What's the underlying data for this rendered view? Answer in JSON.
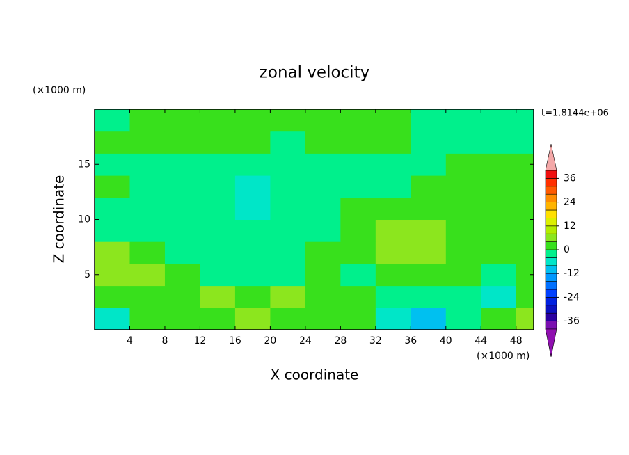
{
  "chart_data": {
    "type": "contour",
    "title": "zonal velocity",
    "xlabel": "X coordinate",
    "ylabel": "Z coordinate",
    "xunit": "(×1000 m)",
    "yunit": "(×1000 m)",
    "time_label": "t=1.8144e+06",
    "xlim": [
      0,
      50
    ],
    "xticks": [
      4,
      8,
      12,
      16,
      20,
      24,
      28,
      32,
      36,
      40,
      44,
      48
    ],
    "ylim": [
      0,
      20
    ],
    "yticks": [
      5,
      10,
      15
    ],
    "xbins": [
      0,
      4,
      8,
      12,
      16,
      20,
      24,
      28,
      32,
      36,
      40,
      44,
      48,
      50
    ],
    "ybins": [
      0,
      2,
      4,
      6,
      8,
      10,
      12,
      14,
      16,
      18,
      20
    ],
    "z": [
      [
        -6,
        1,
        1,
        1,
        6,
        1,
        1,
        1,
        -6,
        -10,
        -2,
        1,
        5
      ],
      [
        1,
        1,
        1,
        5,
        1,
        5,
        1,
        1,
        -2,
        -2,
        -2,
        -6,
        1
      ],
      [
        5,
        5,
        1,
        -2,
        -2,
        -2,
        1,
        -2,
        1,
        1,
        1,
        -2,
        1
      ],
      [
        5,
        1,
        -2,
        -2,
        -2,
        -2,
        1,
        1,
        6,
        6,
        1,
        1,
        1
      ],
      [
        -2,
        -2,
        -2,
        -2,
        -2,
        -2,
        -2,
        1,
        6,
        6,
        1,
        1,
        1
      ],
      [
        -2,
        -2,
        -2,
        -2,
        -6,
        -2,
        -2,
        1,
        1,
        1,
        1,
        1,
        1
      ],
      [
        1,
        -2,
        -2,
        -2,
        -6,
        -2,
        -2,
        -2,
        -2,
        1,
        1,
        1,
        1
      ],
      [
        -2,
        -2,
        -2,
        -2,
        -2,
        -2,
        -2,
        -2,
        -2,
        -2,
        1,
        1,
        1
      ],
      [
        1,
        1,
        1,
        1,
        1,
        -2,
        1,
        1,
        1,
        -2,
        -2,
        -2,
        -2
      ],
      [
        -2,
        1,
        1,
        1,
        1,
        1,
        1,
        1,
        1,
        -2,
        -2,
        -2,
        -2
      ]
    ],
    "levels": [
      -40,
      -36,
      -32,
      -28,
      -24,
      -20,
      -16,
      -12,
      -8,
      -4,
      0,
      4,
      8,
      12,
      16,
      20,
      24,
      28,
      32,
      36,
      40
    ],
    "colors": [
      "#7a10b0",
      "#2a00a0",
      "#0a10c0",
      "#0020e0",
      "#0040ff",
      "#0070ff",
      "#0098ff",
      "#00c0f0",
      "#00e6c8",
      "#00f08c",
      "#38e01c",
      "#8ce61e",
      "#b4ec00",
      "#dcf000",
      "#ffe000",
      "#ffb400",
      "#ff8c00",
      "#ff5a00",
      "#ff3000",
      "#f01010"
    ],
    "extend_colors": [
      "#9010b0",
      "#f4a8a8"
    ],
    "colorbar_ticks": [
      -36,
      -24,
      -12,
      0,
      12,
      24,
      36
    ]
  }
}
